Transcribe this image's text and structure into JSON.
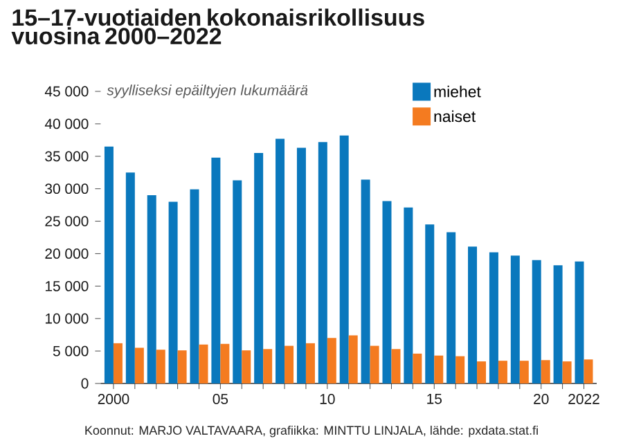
{
  "chart_data": {
    "type": "bar",
    "title": "15–17-vuotiaiden kokonaisrikollisuus vuosina 2000–2022",
    "ylabel": "syylliseksi epäiltyjen lukumäärä",
    "categories": [
      "2000",
      null,
      null,
      null,
      null,
      "05",
      null,
      null,
      null,
      null,
      "10",
      null,
      null,
      null,
      null,
      "15",
      null,
      null,
      null,
      null,
      "20",
      null,
      "2022"
    ],
    "series": [
      {
        "name": "miehet",
        "color": "#0a78bd",
        "values": [
          36500,
          32500,
          29000,
          28000,
          29900,
          34800,
          31300,
          35500,
          37700,
          36300,
          37200,
          38200,
          31400,
          28100,
          27100,
          24500,
          23300,
          21100,
          20200,
          19700,
          19000,
          18200,
          18800
        ]
      },
      {
        "name": "naiset",
        "color": "#f47b20",
        "values": [
          6200,
          5500,
          5200,
          5100,
          6000,
          6100,
          5100,
          5300,
          5800,
          6200,
          7000,
          7400,
          5800,
          5300,
          4600,
          4300,
          4200,
          3400,
          3500,
          3500,
          3600,
          3400,
          3700
        ]
      }
    ],
    "ylim": [
      0,
      45000
    ],
    "yticks": [
      {
        "value": 0,
        "label": "0"
      },
      {
        "value": 5000,
        "label": "5 000"
      },
      {
        "value": 10000,
        "label": "10 000"
      },
      {
        "value": 15000,
        "label": "15 000"
      },
      {
        "value": 20000,
        "label": "20 000"
      },
      {
        "value": 25000,
        "label": "25 000"
      },
      {
        "value": 30000,
        "label": "30 000"
      },
      {
        "value": 35000,
        "label": "35 000"
      },
      {
        "value": 40000,
        "label": "40 000"
      },
      {
        "value": 45000,
        "label": "45 000"
      }
    ],
    "legend": "top right",
    "annotations": [
      "Koonnut: MARJO VALTAVAARA, grafiikka: MINTTU LINJALA, lähde: pxdata.stat.fi"
    ]
  }
}
